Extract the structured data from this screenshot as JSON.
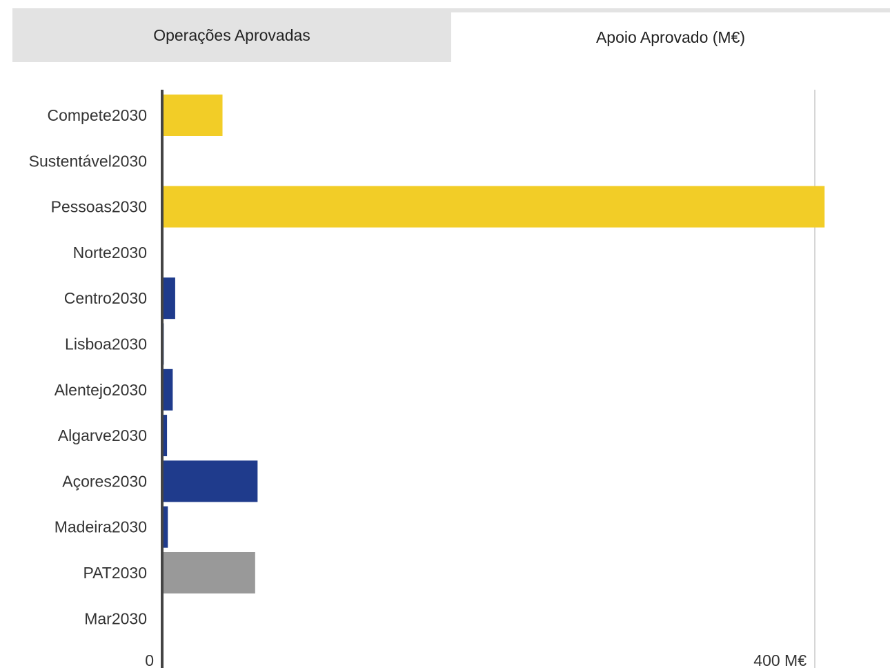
{
  "tabs": [
    {
      "label": "Operações Aprovadas",
      "active": false
    },
    {
      "label": "Apoio Aprovado (M€)",
      "active": true
    }
  ],
  "chart_data": {
    "type": "bar",
    "orientation": "horizontal",
    "categories": [
      "Compete2030",
      "Sustentável2030",
      "Pessoas2030",
      "Norte2030",
      "Centro2030",
      "Lisboa2030",
      "Alentejo2030",
      "Algarve2030",
      "Açores2030",
      "Madeira2030",
      "PAT2030",
      "Mar2030"
    ],
    "values": [
      37,
      0,
      406,
      0,
      8,
      1,
      6.5,
      3,
      58.5,
      3.5,
      57,
      0
    ],
    "bar_colors": [
      "#f2cd27",
      "#f2cd27",
      "#f2cd27",
      "#1f3b8c",
      "#1f3b8c",
      "#1f3b8c",
      "#1f3b8c",
      "#1f3b8c",
      "#1f3b8c",
      "#1f3b8c",
      "#999999",
      "#999999"
    ],
    "xlim": [
      0,
      400
    ],
    "x_ticks": [
      {
        "value": 0,
        "label": "0"
      },
      {
        "value": 400,
        "label": "400 M€"
      }
    ],
    "grid": true,
    "axis_color": "#444444",
    "grid_color": "#d6d6d6"
  }
}
